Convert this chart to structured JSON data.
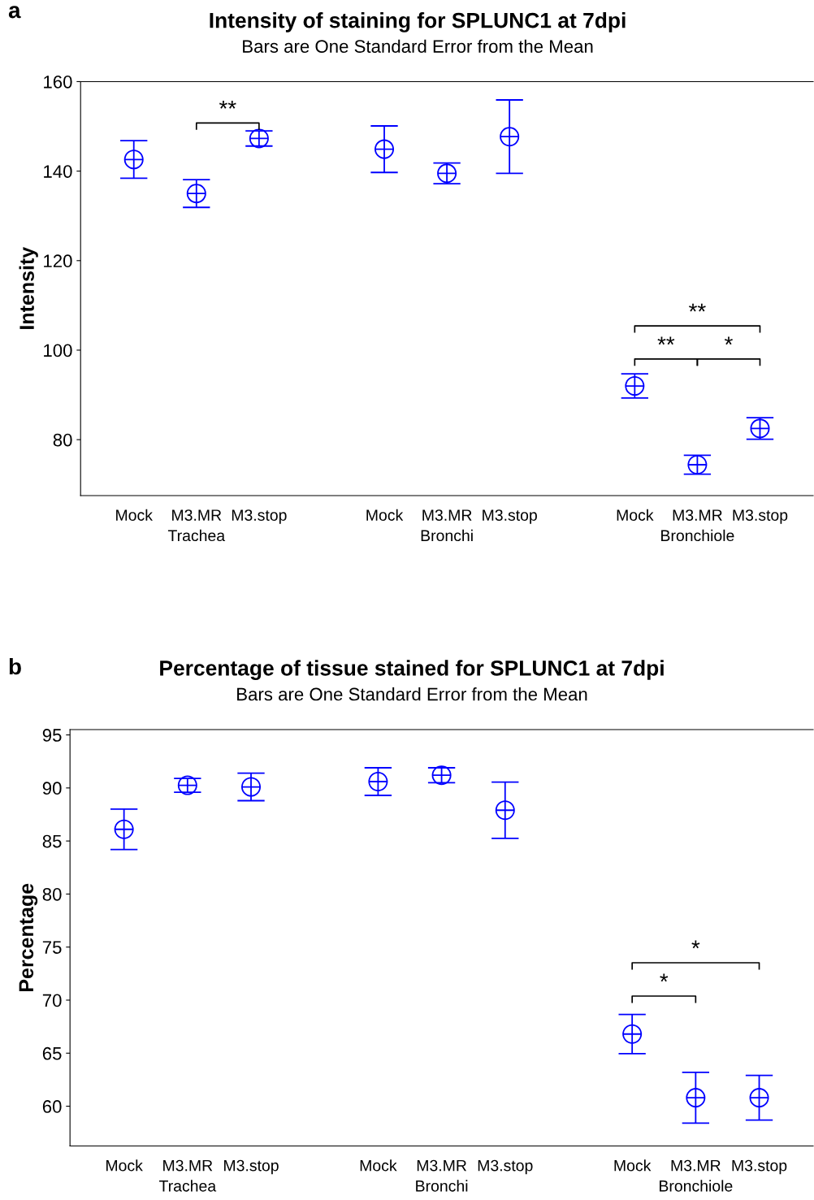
{
  "chart_data": [
    {
      "type": "scatter",
      "title": "Intensity of staining for SPLUNC1 at 7dpi",
      "subtitle": "Bars are One Standard Error from the Mean",
      "ylabel": "Intensity",
      "categories": [
        "Mock",
        "M3.MR\nTrachea",
        "M3.stop",
        null,
        "Mock",
        "M3.MR\nBronchi",
        "M3.stop",
        null,
        "Mock",
        "M3.MR\nBronchiole",
        "M3.stop"
      ],
      "values": [
        142.6,
        135.0,
        147.3,
        null,
        144.9,
        139.5,
        147.7,
        null,
        92.0,
        74.4,
        82.5
      ],
      "errors": [
        4.2,
        3.1,
        1.7,
        null,
        5.2,
        2.3,
        8.2,
        null,
        2.7,
        2.1,
        2.4
      ],
      "color": "#0000ff",
      "marker": "cross",
      "ylim": [
        67.5,
        160
      ],
      "yticks": [
        80,
        100,
        120,
        140,
        160
      ],
      "grid": false,
      "annotations": [
        "a",
        "**",
        "**",
        "**",
        "*"
      ]
    },
    {
      "type": "scatter",
      "title": "Percentage of tissue stained for SPLUNC1 at 7dpi",
      "subtitle": "Bars are One Standard Error from the Mean",
      "ylabel": "Percentage",
      "categories": [
        "Mock",
        "M3.MR\nTrachea",
        "M3.stop",
        null,
        "Mock",
        "M3.MR\nBronchi",
        "M3.stop",
        null,
        "Mock",
        "M3.MR\nBronchiole",
        "M3.stop"
      ],
      "values": [
        86.1,
        90.25,
        90.1,
        null,
        90.6,
        91.2,
        87.9,
        null,
        66.8,
        60.8,
        60.8
      ],
      "errors": [
        1.9,
        0.65,
        1.3,
        null,
        1.3,
        0.7,
        2.65,
        null,
        1.85,
        2.4,
        2.1
      ],
      "color": "#0000ff",
      "marker": "cross",
      "ylim": [
        56.25,
        95.5
      ],
      "yticks": [
        60,
        65,
        70,
        75,
        80,
        85,
        90,
        95
      ],
      "grid": false,
      "annotations": [
        "b",
        "*",
        "*"
      ]
    }
  ]
}
